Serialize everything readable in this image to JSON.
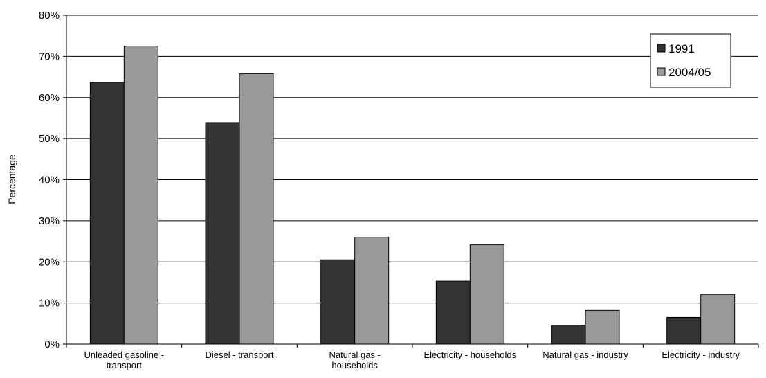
{
  "chart_data": {
    "type": "bar",
    "title": "",
    "xlabel": "",
    "ylabel": "Percentage",
    "ylim": [
      0,
      80
    ],
    "y_ticks": [
      "0%",
      "10%",
      "20%",
      "30%",
      "40%",
      "50%",
      "60%",
      "70%",
      "80%"
    ],
    "y_tick_values": [
      0,
      10,
      20,
      30,
      40,
      50,
      60,
      70,
      80
    ],
    "grid": true,
    "legend_position": "top-right",
    "categories": [
      [
        "Unleaded gasoline -",
        "transport"
      ],
      [
        "Diesel - transport"
      ],
      [
        "Natural gas -",
        "households"
      ],
      [
        "Electricity - households"
      ],
      [
        "Natural gas - industry"
      ],
      [
        "Electricity - industry"
      ]
    ],
    "series": [
      {
        "name": "1991",
        "color": "#333333",
        "values": [
          63.7,
          53.9,
          20.5,
          15.3,
          4.6,
          6.5
        ]
      },
      {
        "name": "2004/05",
        "color": "#999999",
        "values": [
          72.5,
          65.8,
          26.0,
          24.2,
          8.2,
          12.1
        ]
      }
    ]
  }
}
